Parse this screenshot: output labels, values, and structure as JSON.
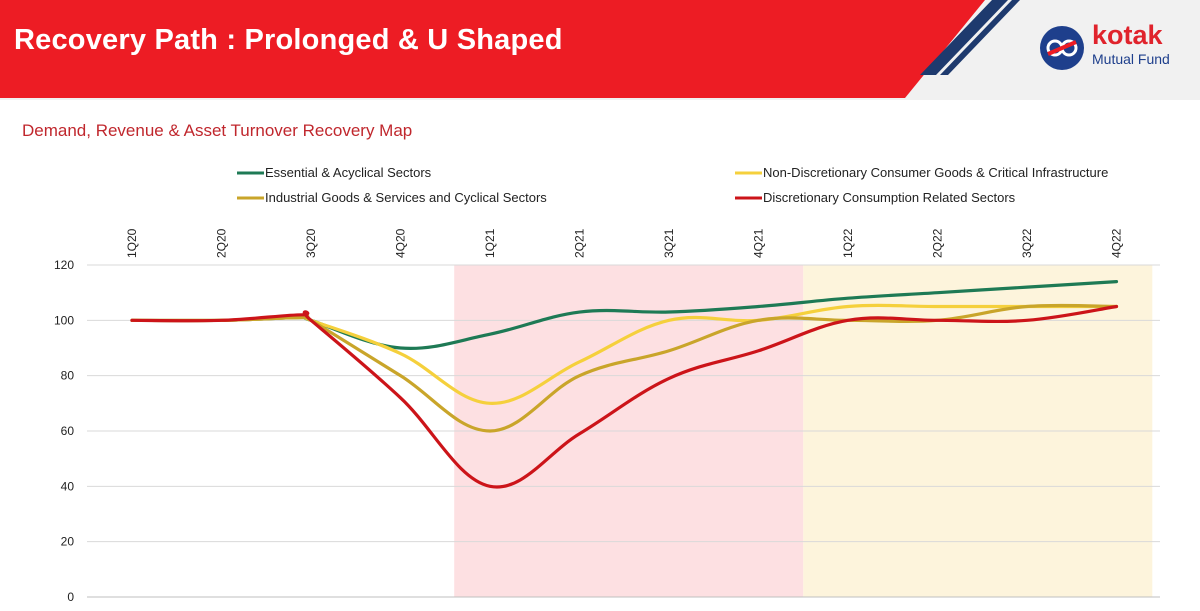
{
  "header": {
    "title": "Recovery Path : Prolonged & U Shaped",
    "logo_word": "kotak",
    "logo_sub": "Mutual Fund"
  },
  "colors": {
    "banner_red": "#ed1c24",
    "banner_navy": "#1e3a6e",
    "shade_red": "#fde0e2",
    "shade_yellow": "#fdf4dc"
  },
  "chart_data": {
    "type": "line",
    "title": "Demand, Revenue & Asset Turnover Recovery Map",
    "categories": [
      "1Q20",
      "2Q20",
      "3Q20",
      "4Q20",
      "1Q21",
      "2Q21",
      "3Q21",
      "4Q21",
      "1Q22",
      "2Q22",
      "3Q22",
      "4Q22"
    ],
    "ylim": [
      0,
      120
    ],
    "yticks": [
      "0",
      "20",
      "40",
      "60",
      "80",
      "100",
      "120"
    ],
    "shaded_regions": [
      {
        "from": 3.6,
        "to": 7.5,
        "color": "#fde0e2"
      },
      {
        "from": 7.5,
        "to": 11.4,
        "color": "#fdf4dc"
      }
    ],
    "series": [
      {
        "name": "Essential & Acyclical Sectors",
        "color": "#1e7a55",
        "points": [
          [
            0,
            100
          ],
          [
            1,
            100
          ],
          [
            1.9,
            101
          ],
          [
            2,
            100
          ],
          [
            3,
            90
          ],
          [
            4,
            95
          ],
          [
            5,
            103
          ],
          [
            6,
            103
          ],
          [
            7,
            105
          ],
          [
            8,
            108
          ],
          [
            9,
            110
          ],
          [
            10,
            112
          ],
          [
            11,
            114
          ]
        ]
      },
      {
        "name": "Non-Discretionary Consumer Goods & Critical Infrastructure",
        "color": "#f5d03c",
        "points": [
          [
            0,
            100
          ],
          [
            1,
            100
          ],
          [
            1.9,
            101
          ],
          [
            2,
            100
          ],
          [
            3,
            88
          ],
          [
            4,
            70
          ],
          [
            5,
            85
          ],
          [
            6,
            100
          ],
          [
            7,
            100
          ],
          [
            8,
            105
          ],
          [
            9,
            105
          ],
          [
            10,
            105
          ],
          [
            11,
            105
          ]
        ]
      },
      {
        "name": "Industrial Goods & Services and Cyclical Sectors",
        "color": "#c9a52a",
        "points": [
          [
            0,
            100
          ],
          [
            1,
            100
          ],
          [
            1.9,
            101
          ],
          [
            2,
            100
          ],
          [
            3,
            80
          ],
          [
            4,
            60
          ],
          [
            5,
            80
          ],
          [
            6,
            89
          ],
          [
            7,
            100
          ],
          [
            8,
            100
          ],
          [
            9,
            100
          ],
          [
            10,
            105
          ],
          [
            11,
            105
          ]
        ]
      },
      {
        "name": "Discretionary Consumption Related Sectors",
        "color": "#cc1419",
        "points": [
          [
            0,
            100
          ],
          [
            1,
            100
          ],
          [
            1.9,
            102
          ],
          [
            2,
            100
          ],
          [
            3,
            72
          ],
          [
            4,
            40
          ],
          [
            5,
            59
          ],
          [
            6,
            79
          ],
          [
            7,
            89
          ],
          [
            8,
            100
          ],
          [
            9,
            100
          ],
          [
            10,
            100
          ],
          [
            11,
            105
          ]
        ]
      }
    ]
  }
}
